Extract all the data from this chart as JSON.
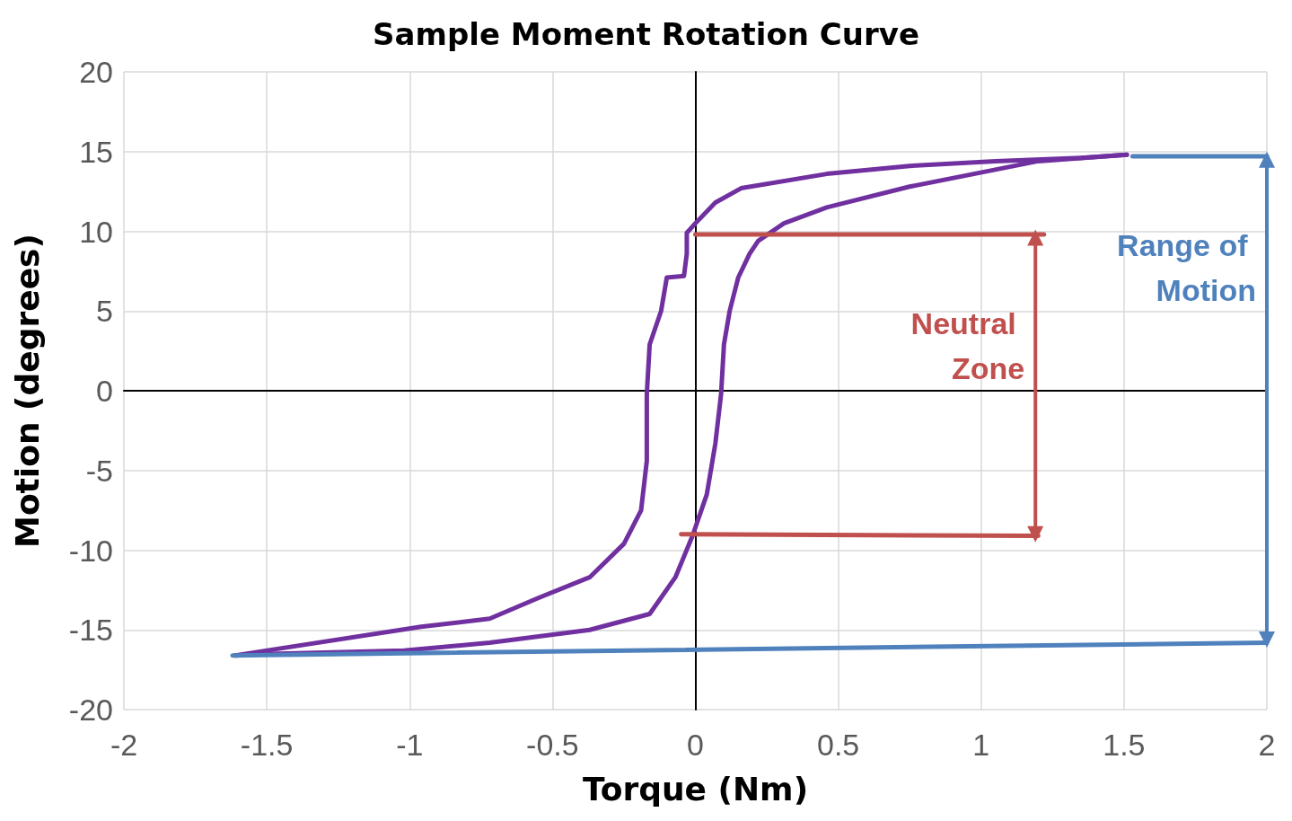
{
  "chart_data": {
    "type": "line",
    "title": "Sample Moment Rotation Curve",
    "xlabel": "Torque (Nm)",
    "ylabel": "Motion (degrees)",
    "xlim": [
      -2,
      2
    ],
    "xticks": [
      -2,
      -1.5,
      -1,
      -0.5,
      0,
      0.5,
      1,
      1.5,
      2
    ],
    "ylim": [
      -20,
      20
    ],
    "yticks": [
      -20,
      -15,
      -10,
      -5,
      0,
      5,
      10,
      15,
      20
    ],
    "grid": true,
    "marker": "none",
    "line_style": "solid",
    "series": [
      {
        "color": "#7030a0",
        "x": [
          -1.61,
          -0.96,
          -0.72,
          -0.55,
          -0.37,
          -0.25,
          -0.19,
          -0.17,
          -0.17,
          -0.16,
          -0.12,
          -0.1,
          -0.04,
          -0.03,
          -0.03,
          0,
          0.07,
          0.16,
          0.46,
          0.75,
          1.05,
          1.35,
          1.51
        ],
        "values": [
          -16.6,
          -14.8,
          -14.3,
          -13,
          -11.7,
          -9.6,
          -7.5,
          -4.4,
          -0.2,
          2.9,
          5,
          7.1,
          7.2,
          8.6,
          9.9,
          10.5,
          11.8,
          12.7,
          13.6,
          14.1,
          14.4,
          14.6,
          14.8
        ]
      },
      {
        "color": "#7030a0",
        "x": [
          -1.61,
          -1.49,
          -1.02,
          -0.72,
          -0.37,
          -0.16,
          -0.07,
          -0.01,
          0.04,
          0.07,
          0.09,
          0.1,
          0.12,
          0.15,
          0.19,
          0.22,
          0.31,
          0.46,
          0.75,
          1.2,
          1.51
        ],
        "values": [
          -16.6,
          -16.5,
          -16.3,
          -15.8,
          -15,
          -14,
          -11.7,
          -9.1,
          -6.5,
          -3.3,
          -0.2,
          2.9,
          5,
          7.1,
          8.6,
          9.4,
          10.5,
          11.5,
          12.8,
          14.4,
          14.8
        ]
      },
      {
        "color": "#c0504d",
        "x": [
          0,
          1.22
        ],
        "values": [
          9.8,
          9.8
        ]
      },
      {
        "color": "#c0504d",
        "x": [
          -0.05,
          1.2
        ],
        "values": [
          -9,
          -9.1
        ]
      },
      {
        "color": "#c0504d",
        "x": [
          1.19,
          1.19
        ],
        "values": [
          9.6,
          -9
        ],
        "marker": "triangle"
      },
      {
        "color": "#4f81bd",
        "x": [
          1.53,
          2
        ],
        "values": [
          14.7,
          14.7
        ]
      },
      {
        "color": "#4f81bd",
        "x": [
          -1.62,
          2
        ],
        "values": [
          -16.6,
          -15.8
        ]
      },
      {
        "color": "#4f81bd",
        "x": [
          2,
          2
        ],
        "values": [
          14.5,
          -15.6
        ],
        "marker": "triangle"
      }
    ],
    "annotations": [
      "Neutral Zone",
      "Range of Motion"
    ]
  }
}
